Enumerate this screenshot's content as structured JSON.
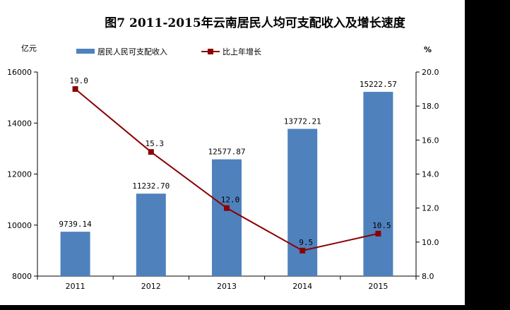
{
  "page": {
    "background": "#000000",
    "panel": "#ffffff"
  },
  "chart_data": {
    "type": "bar+line",
    "title": "图7    2011-2015年云南居民人均可支配收入及增长速度",
    "categories": [
      "2011",
      "2012",
      "2013",
      "2014",
      "2015"
    ],
    "left_axis": {
      "unit": "亿元",
      "ylim": [
        8000,
        16000
      ],
      "ticks": [
        "8000",
        "10000",
        "12000",
        "14000",
        "16000"
      ]
    },
    "right_axis": {
      "unit": "%",
      "ylim": [
        8.0,
        20.0
      ],
      "ticks": [
        "8.0",
        "10.0",
        "12.0",
        "14.0",
        "16.0",
        "18.0",
        "20.0"
      ]
    },
    "series": [
      {
        "name": "居民人民可支配收入",
        "kind": "bar",
        "axis": "left",
        "color": "#4f81bd",
        "values": [
          9739.14,
          11232.7,
          12577.87,
          13772.21,
          15222.57
        ],
        "labels": [
          "9739.14",
          "11232.70",
          "12577.87",
          "13772.21",
          "15222.57"
        ]
      },
      {
        "name": "比上年增长",
        "kind": "line",
        "axis": "right",
        "color": "#8b0000",
        "values": [
          19.0,
          15.3,
          12.0,
          9.5,
          10.5
        ],
        "labels": [
          "19.0",
          "15.3",
          "12.0",
          "9.5",
          "10.5"
        ]
      }
    ],
    "legend_position": "top"
  }
}
